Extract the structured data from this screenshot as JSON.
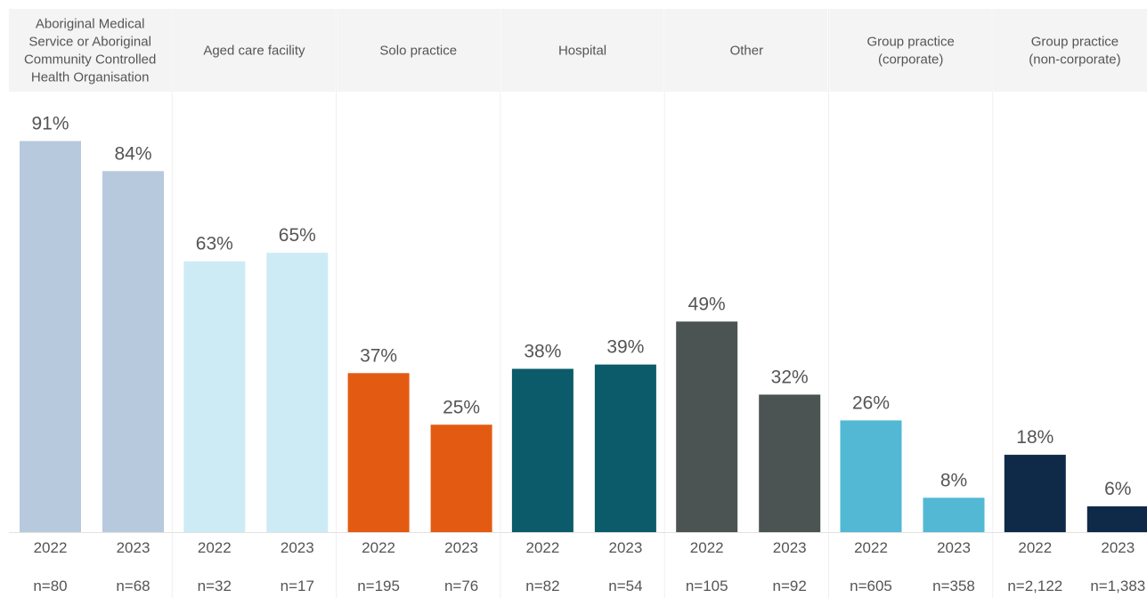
{
  "chart_data": {
    "type": "bar",
    "ylim": [
      0,
      100
    ],
    "groups": [
      {
        "label": "Aboriginal Medical Service or Aboriginal Community Controlled Health Organisation",
        "label_lines": [
          "Aboriginal Medical",
          "Service or Aboriginal",
          "Community Controlled",
          "Health Organisation"
        ],
        "color": "#b7c9dc",
        "bars": [
          {
            "year": "2022",
            "value": 91,
            "value_label": "91%",
            "n": "n=80"
          },
          {
            "year": "2023",
            "value": 84,
            "value_label": "84%",
            "n": "n=68"
          }
        ]
      },
      {
        "label": "Aged care facility",
        "label_lines": [
          "Aged care facility"
        ],
        "color": "#cdebf5",
        "bars": [
          {
            "year": "2022",
            "value": 63,
            "value_label": "63%",
            "n": "n=32"
          },
          {
            "year": "2023",
            "value": 65,
            "value_label": "65%",
            "n": "n=17"
          }
        ]
      },
      {
        "label": "Solo practice",
        "label_lines": [
          "Solo practice"
        ],
        "color": "#e35b12",
        "bars": [
          {
            "year": "2022",
            "value": 37,
            "value_label": "37%",
            "n": "n=195"
          },
          {
            "year": "2023",
            "value": 25,
            "value_label": "25%",
            "n": "n=76"
          }
        ]
      },
      {
        "label": "Hospital",
        "label_lines": [
          "Hospital"
        ],
        "color": "#0c5b6a",
        "bars": [
          {
            "year": "2022",
            "value": 38,
            "value_label": "38%",
            "n": "n=82"
          },
          {
            "year": "2023",
            "value": 39,
            "value_label": "39%",
            "n": "n=54"
          }
        ]
      },
      {
        "label": "Other",
        "label_lines": [
          "Other"
        ],
        "color": "#4b5453",
        "bars": [
          {
            "year": "2022",
            "value": 49,
            "value_label": "49%",
            "n": "n=105"
          },
          {
            "year": "2023",
            "value": 32,
            "value_label": "32%",
            "n": "n=92"
          }
        ]
      },
      {
        "label": "Group practice (corporate)",
        "label_lines": [
          "Group practice",
          "(corporate)"
        ],
        "color": "#52b8d4",
        "bars": [
          {
            "year": "2022",
            "value": 26,
            "value_label": "26%",
            "n": "n=605"
          },
          {
            "year": "2023",
            "value": 8,
            "value_label": "8%",
            "n": "n=358"
          }
        ]
      },
      {
        "label": "Group practice (non-corporate)",
        "label_lines": [
          "Group practice",
          "(non-corporate)"
        ],
        "color": "#0f2a48",
        "bars": [
          {
            "year": "2022",
            "value": 18,
            "value_label": "18%",
            "n": "n=2,122"
          },
          {
            "year": "2023",
            "value": 6,
            "value_label": "6%",
            "n": "n=1,383"
          }
        ]
      }
    ]
  }
}
